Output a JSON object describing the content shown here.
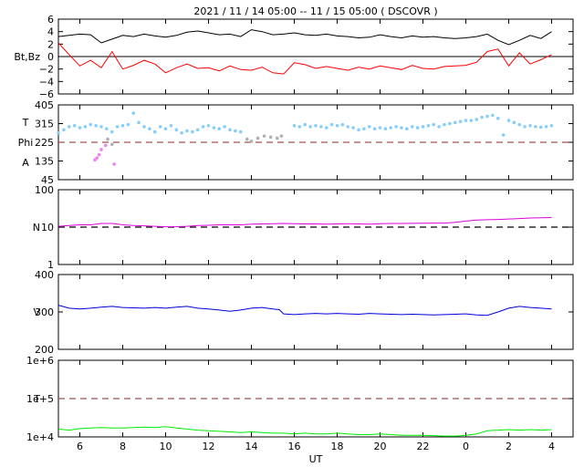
{
  "title": "2021 / 11 / 14   05:00 -- 11 / 15   05:00 ( DSCOVR )",
  "x_axis": {
    "label": "UT",
    "ticks": [
      "6",
      "8",
      "10",
      "12",
      "14",
      "16",
      "18",
      "20",
      "22",
      "0",
      "2",
      "4"
    ],
    "range_hours": [
      5.0,
      29.0
    ],
    "tick_hours": [
      6,
      8,
      10,
      12,
      14,
      16,
      18,
      20,
      22,
      24,
      26,
      28
    ]
  },
  "colors": {
    "bt": "#000000",
    "bz": "#ff0000",
    "phi_toward": "#87cefa",
    "phi_away": "#ee82ee",
    "phi_gray": "#b0b0b0",
    "density": "#dd00dd",
    "speed": "#0000dd",
    "temperature": "#00ee00",
    "reference_dashed": "#a05050"
  },
  "chart_data": [
    {
      "type": "line",
      "panel": "magnetic-field",
      "ylabel": "Bt,Bz",
      "yticks": [
        "6",
        "4",
        "2",
        "0",
        "−2",
        "−4",
        "−6"
      ],
      "ylim": [
        -6,
        6
      ],
      "zero_line": 0,
      "series": [
        {
          "x": [
            5.0,
            5.5,
            6.0,
            6.5,
            7.0,
            7.5,
            8.0,
            8.5,
            9.0,
            9.5,
            10.0,
            10.5,
            11.0,
            11.5,
            12.0,
            12.5,
            13.0,
            13.5,
            14.0,
            14.5,
            15.0,
            15.5,
            16.0,
            16.5,
            17.0,
            17.5,
            18.0,
            18.5,
            19.0,
            19.5,
            20.0,
            20.5,
            21.0,
            21.5,
            22.0,
            22.5,
            23.0,
            23.5,
            24.0,
            24.5,
            25.0,
            25.5,
            26.0,
            26.5,
            27.0,
            27.5,
            28.0
          ],
          "values": [
            3.2,
            3.4,
            3.6,
            3.5,
            2.2,
            2.8,
            3.4,
            3.2,
            3.6,
            3.3,
            3.1,
            3.4,
            3.9,
            4.1,
            3.8,
            3.5,
            3.6,
            3.2,
            4.3,
            4.0,
            3.5,
            3.6,
            3.8,
            3.5,
            3.4,
            3.6,
            3.3,
            3.2,
            3.0,
            3.1,
            3.5,
            3.2,
            3.0,
            3.3,
            3.1,
            3.2,
            3.0,
            2.9,
            3.0,
            3.2,
            3.6,
            2.6,
            1.9,
            2.6,
            3.4,
            2.9,
            4.0
          ]
        },
        {
          "x": [
            5.0,
            5.5,
            6.0,
            6.5,
            7.0,
            7.5,
            8.0,
            8.5,
            9.0,
            9.5,
            10.0,
            10.5,
            11.0,
            11.5,
            12.0,
            12.5,
            13.0,
            13.5,
            14.0,
            14.5,
            15.0,
            15.5,
            16.0,
            16.5,
            17.0,
            17.5,
            18.0,
            18.5,
            19.0,
            19.5,
            20.0,
            20.5,
            21.0,
            21.5,
            22.0,
            22.5,
            23.0,
            23.5,
            24.0,
            24.5,
            25.0,
            25.5,
            26.0,
            26.5,
            27.0,
            27.5,
            28.0
          ],
          "values": [
            2.2,
            0.3,
            -1.5,
            -0.6,
            -1.8,
            0.8,
            -2.0,
            -1.4,
            -0.6,
            -1.2,
            -2.6,
            -1.8,
            -1.2,
            -1.9,
            -1.8,
            -2.3,
            -1.5,
            -2.1,
            -2.2,
            -1.7,
            -2.6,
            -2.8,
            -1.0,
            -1.3,
            -1.9,
            -1.6,
            -1.9,
            -2.2,
            -1.7,
            -2.0,
            -1.5,
            -1.8,
            -2.1,
            -1.4,
            -1.9,
            -2.0,
            -1.6,
            -1.5,
            -1.4,
            -0.9,
            0.8,
            1.2,
            -1.5,
            0.6,
            -1.2,
            -0.5,
            0.3
          ]
        }
      ]
    },
    {
      "type": "scatter",
      "panel": "phi-angle",
      "ylabel_top": "T",
      "ylabel_mid": "Phi",
      "ylabel_bot": "A",
      "yticks": [
        "405",
        "315",
        "225",
        "135",
        "45"
      ],
      "ylim": [
        45,
        405
      ],
      "reference_line": 225,
      "series": [
        {
          "x": [
            5.0,
            5.25,
            5.5,
            5.75,
            6.0,
            6.25,
            6.5,
            6.75,
            7.0,
            7.25,
            7.5,
            7.75,
            8.0,
            8.25,
            8.5,
            8.75,
            9.0,
            9.25,
            9.5,
            9.75,
            10.0,
            10.25,
            10.5,
            10.75,
            11.0,
            11.25,
            11.5,
            11.75,
            12.0,
            12.25,
            12.5,
            12.75,
            13.0,
            13.25,
            13.5,
            16.0,
            16.25,
            16.5,
            16.75,
            17.0,
            17.25,
            17.5,
            17.75,
            18.0,
            18.25,
            18.5,
            18.75,
            19.0,
            19.25,
            19.5,
            19.75,
            20.0,
            20.25,
            20.5,
            20.75,
            21.0,
            21.25,
            21.5,
            21.75,
            22.0,
            22.25,
            22.5,
            22.75,
            23.0,
            23.25,
            23.5,
            23.75,
            24.0,
            24.25,
            24.5,
            24.75,
            25.0,
            25.25,
            25.5,
            25.75,
            26.0,
            26.25,
            26.5,
            26.75,
            27.0,
            27.25,
            27.5,
            27.75,
            28.0
          ],
          "values": [
            270,
            285,
            300,
            305,
            295,
            300,
            310,
            305,
            300,
            290,
            275,
            300,
            305,
            310,
            365,
            320,
            300,
            290,
            275,
            300,
            290,
            305,
            285,
            270,
            280,
            275,
            285,
            300,
            305,
            295,
            290,
            300,
            285,
            280,
            275,
            305,
            300,
            310,
            300,
            305,
            300,
            295,
            310,
            305,
            310,
            300,
            295,
            285,
            290,
            300,
            290,
            295,
            290,
            295,
            300,
            295,
            290,
            300,
            295,
            300,
            305,
            310,
            300,
            310,
            315,
            320,
            325,
            330,
            330,
            335,
            345,
            350,
            355,
            340,
            260,
            330,
            320,
            310,
            300,
            305,
            300,
            298,
            300,
            305
          ]
        },
        {
          "x": [
            6.7,
            6.8,
            6.9,
            7.0,
            7.2,
            7.6
          ],
          "values": [
            140,
            150,
            165,
            190,
            210,
            120
          ]
        },
        {
          "x": [
            7.3,
            7.5,
            13.8,
            14.0,
            14.3,
            14.6,
            14.9,
            15.2,
            15.4
          ],
          "values": [
            240,
            215,
            240,
            230,
            245,
            255,
            250,
            245,
            255
          ]
        }
      ]
    },
    {
      "type": "line",
      "panel": "density",
      "ylabel": "N",
      "yticks": [
        "100",
        "10",
        "1"
      ],
      "ylim": [
        1,
        100
      ],
      "scale": "log",
      "reference_line": 10,
      "series": [
        {
          "x": [
            5.0,
            5.5,
            6.0,
            6.5,
            7.0,
            7.5,
            8.0,
            8.5,
            9.0,
            9.5,
            10.0,
            10.5,
            11.0,
            11.5,
            12.0,
            12.5,
            13.0,
            13.5,
            14.0,
            14.5,
            15.0,
            15.5,
            16.0,
            16.5,
            17.0,
            17.5,
            18.0,
            18.5,
            19.0,
            19.5,
            20.0,
            20.5,
            21.0,
            21.5,
            22.0,
            22.5,
            23.0,
            23.5,
            24.0,
            24.5,
            25.0,
            25.5,
            26.0,
            26.5,
            27.0,
            27.5,
            28.0
          ],
          "values": [
            10.5,
            11.0,
            11.5,
            11.5,
            12.5,
            12.5,
            11.5,
            11.0,
            10.8,
            10.5,
            10.2,
            10.3,
            10.5,
            11.0,
            11.2,
            11.5,
            11.5,
            11.5,
            12.0,
            12.2,
            12.3,
            12.5,
            12.3,
            12.2,
            12.2,
            12.0,
            12.2,
            12.3,
            12.2,
            12.0,
            12.3,
            12.5,
            12.5,
            12.6,
            12.7,
            12.8,
            12.8,
            13.5,
            14.5,
            15.5,
            15.8,
            16.0,
            16.5,
            17.0,
            17.5,
            17.8,
            18.0
          ]
        }
      ]
    },
    {
      "type": "line",
      "panel": "speed",
      "ylabel": "V",
      "yticks": [
        "400",
        "300",
        "200"
      ],
      "ylim": [
        200,
        400
      ],
      "series": [
        {
          "x": [
            5.0,
            5.5,
            6.0,
            6.5,
            7.0,
            7.5,
            8.0,
            8.5,
            9.0,
            9.5,
            10.0,
            10.5,
            11.0,
            11.5,
            12.0,
            12.5,
            13.0,
            13.5,
            14.0,
            14.5,
            15.0,
            15.3,
            15.5,
            16.0,
            16.5,
            17.0,
            17.5,
            18.0,
            18.5,
            19.0,
            19.5,
            20.0,
            20.5,
            21.0,
            21.5,
            22.0,
            22.5,
            23.0,
            23.5,
            24.0,
            24.5,
            25.0,
            25.5,
            26.0,
            26.5,
            27.0,
            27.5,
            28.0
          ],
          "values": [
            318,
            310,
            308,
            310,
            313,
            315,
            312,
            311,
            310,
            312,
            310,
            313,
            315,
            310,
            308,
            305,
            302,
            305,
            310,
            312,
            308,
            306,
            295,
            293,
            295,
            296,
            295,
            296,
            295,
            294,
            296,
            295,
            294,
            293,
            294,
            293,
            292,
            293,
            294,
            295,
            292,
            291,
            300,
            310,
            315,
            312,
            310,
            308
          ]
        }
      ]
    },
    {
      "type": "line",
      "panel": "temperature",
      "ylabel": "T",
      "yticks": [
        "1e+6",
        "1e+5",
        "1e+4"
      ],
      "ylim": [
        10000,
        1000000
      ],
      "scale": "log",
      "reference_line": 100000,
      "series": [
        {
          "x": [
            5.0,
            5.5,
            6.0,
            6.5,
            7.0,
            7.5,
            8.0,
            8.5,
            9.0,
            9.5,
            10.0,
            10.5,
            11.0,
            11.5,
            12.0,
            12.5,
            13.0,
            13.5,
            14.0,
            14.5,
            15.0,
            15.5,
            16.0,
            16.5,
            17.0,
            17.5,
            18.0,
            18.5,
            19.0,
            19.5,
            20.0,
            20.5,
            21.0,
            21.5,
            22.0,
            22.5,
            23.0,
            23.5,
            24.0,
            24.5,
            25.0,
            25.5,
            26.0,
            26.5,
            27.0,
            27.5,
            28.0
          ],
          "values": [
            16000,
            15000,
            16500,
            17000,
            17500,
            17000,
            17000,
            17500,
            18000,
            17500,
            18500,
            17000,
            16000,
            15000,
            14500,
            14000,
            13500,
            13000,
            13500,
            13000,
            12500,
            12500,
            12000,
            12500,
            12000,
            12000,
            12500,
            12000,
            11500,
            11500,
            12000,
            11500,
            11000,
            11000,
            11000,
            10800,
            10500,
            10500,
            11000,
            12000,
            14500,
            15000,
            15500,
            15000,
            15500,
            15000,
            15500
          ]
        }
      ]
    }
  ]
}
